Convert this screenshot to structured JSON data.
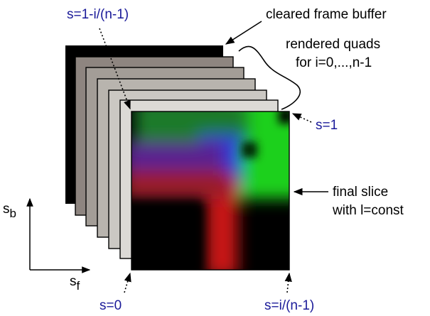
{
  "labels": {
    "cleared_buffer": "cleared frame buffer",
    "rendered_quads_line1": "rendered quads",
    "rendered_quads_line2": "for i=0,...,n-1",
    "final_slice_line1": "final slice",
    "final_slice_line2": "with l=const",
    "s_top_left": "s=1-i/(n-1)",
    "s_one": "s=1",
    "s_zero": "s=0",
    "s_bottom_right": "s=i/(n-1)",
    "axis_vertical_main": "s",
    "axis_vertical_sub": "b",
    "axis_horizontal_main": "s",
    "axis_horizontal_sub": "f"
  },
  "colors": {
    "text_black": "#000000",
    "text_blue": "#1a1a99",
    "slice_green": "#22ee22",
    "slice_red": "#dd1a1a",
    "slice_blue": "#3333cc"
  },
  "layer_fills": [
    "#000000",
    "#8e8580",
    "#a39d97",
    "#b8b4ae",
    "#cbc8c3",
    "#dcdad6",
    "#eceae8"
  ]
}
